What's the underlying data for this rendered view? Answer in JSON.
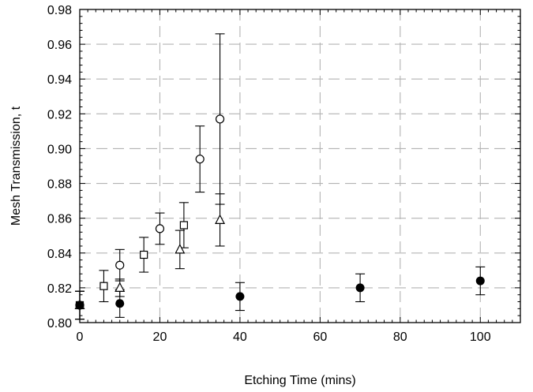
{
  "chart_data": {
    "type": "scatter",
    "xlabel": "Etching Time (mins)",
    "ylabel": "Mesh Transmission, t",
    "xlim": [
      0,
      110
    ],
    "ylim": [
      0.8,
      0.98
    ],
    "xticks": [
      "0",
      "20",
      "40",
      "60",
      "80",
      "100"
    ],
    "xtick_values": [
      0,
      20,
      40,
      60,
      80,
      100
    ],
    "yticks": [
      "0.80",
      "0.82",
      "0.84",
      "0.86",
      "0.88",
      "0.90",
      "0.92",
      "0.94",
      "0.96",
      "0.98"
    ],
    "ytick_values": [
      0.8,
      0.82,
      0.84,
      0.86,
      0.88,
      0.9,
      0.92,
      0.94,
      0.96,
      0.98
    ],
    "grid": true,
    "series": [
      {
        "marker": "circle-open",
        "points": [
          {
            "x": 0,
            "y": 0.81,
            "err": 0.008
          },
          {
            "x": 10,
            "y": 0.833,
            "err": 0.009
          },
          {
            "x": 20,
            "y": 0.854,
            "err": 0.009
          },
          {
            "x": 30,
            "y": 0.894,
            "err": 0.019
          },
          {
            "x": 35,
            "y": 0.917,
            "err": 0.049
          }
        ]
      },
      {
        "marker": "square-open",
        "points": [
          {
            "x": 0,
            "y": 0.81,
            "err": 0.008
          },
          {
            "x": 6,
            "y": 0.821,
            "err": 0.009
          },
          {
            "x": 16,
            "y": 0.839,
            "err": 0.01
          },
          {
            "x": 26,
            "y": 0.856,
            "err": 0.013
          }
        ]
      },
      {
        "marker": "triangle-open",
        "points": [
          {
            "x": 0,
            "y": 0.81,
            "err": 0.008
          },
          {
            "x": 10,
            "y": 0.82,
            "err": 0.005
          },
          {
            "x": 25,
            "y": 0.842,
            "err": 0.011
          },
          {
            "x": 35,
            "y": 0.859,
            "err": 0.015
          }
        ]
      },
      {
        "marker": "circle-filled",
        "points": [
          {
            "x": 0,
            "y": 0.81,
            "err": 0.008
          },
          {
            "x": 10,
            "y": 0.811,
            "err": 0.008
          },
          {
            "x": 40,
            "y": 0.815,
            "err": 0.008
          },
          {
            "x": 70,
            "y": 0.82,
            "err": 0.008
          },
          {
            "x": 100,
            "y": 0.824,
            "err": 0.008
          }
        ]
      }
    ]
  }
}
